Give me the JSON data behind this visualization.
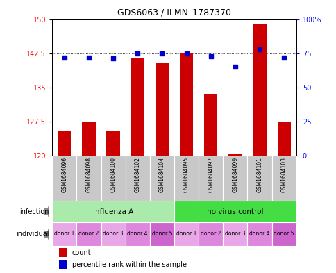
{
  "title": "GDS6063 / ILMN_1787370",
  "samples": [
    "GSM1684096",
    "GSM1684098",
    "GSM1684100",
    "GSM1684102",
    "GSM1684104",
    "GSM1684095",
    "GSM1684097",
    "GSM1684099",
    "GSM1684101",
    "GSM1684103"
  ],
  "counts": [
    125.5,
    127.5,
    125.5,
    141.5,
    140.5,
    142.5,
    133.5,
    120.5,
    149.0,
    127.5
  ],
  "percentiles": [
    72,
    72,
    71,
    75,
    75,
    75,
    73,
    65,
    78,
    72
  ],
  "ylim_left": [
    120,
    150
  ],
  "ylim_right": [
    0,
    100
  ],
  "yticks_left": [
    120,
    127.5,
    135,
    142.5,
    150
  ],
  "yticks_right": [
    0,
    25,
    50,
    75,
    100
  ],
  "ytick_labels_right": [
    "0",
    "25",
    "50",
    "75",
    "100%"
  ],
  "infection_groups": [
    {
      "label": "influenza A",
      "start": 0,
      "end": 5,
      "color": "#aaeaaa"
    },
    {
      "label": "no virus control",
      "start": 5,
      "end": 10,
      "color": "#44dd44"
    }
  ],
  "individual_labels": [
    "donor 1",
    "donor 2",
    "donor 3",
    "donor 4",
    "donor 5",
    "donor 1",
    "donor 2",
    "donor 3",
    "donor 4",
    "donor 5"
  ],
  "individual_colors": [
    "#e8a8e8",
    "#dd88dd",
    "#e8a8e8",
    "#dd88dd",
    "#cc66cc",
    "#e8a8e8",
    "#dd88dd",
    "#e8a8e8",
    "#dd88dd",
    "#cc66cc"
  ],
  "bar_color": "#CC0000",
  "dot_color": "#0000CC",
  "bar_width": 0.55,
  "background_color": "#ffffff",
  "sample_bg_color": "#C8C8C8",
  "legend_items": [
    {
      "label": "count",
      "color": "#CC0000"
    },
    {
      "label": "percentile rank within the sample",
      "color": "#0000CC"
    }
  ],
  "arrow_color": "#888888"
}
